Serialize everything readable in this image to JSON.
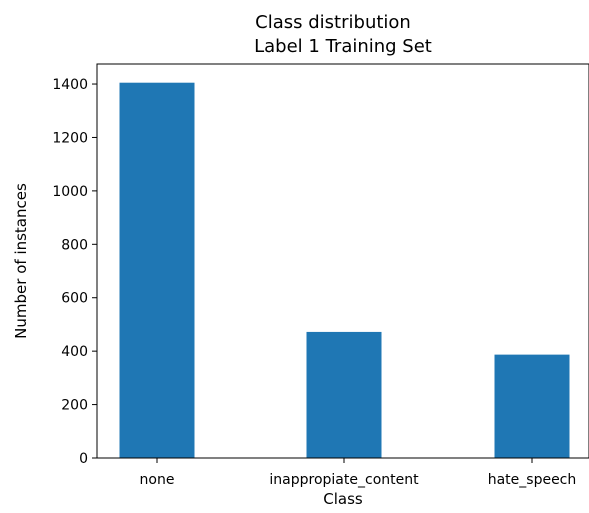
{
  "chart_data": {
    "type": "bar",
    "title_line1": "Class distribution",
    "title_line2": "Label 1 Training Set",
    "xlabel": "Class",
    "ylabel": "Number of instances",
    "categories": [
      "none",
      "inappropiate_content",
      "hate_speech"
    ],
    "values": [
      1405,
      472,
      387
    ],
    "ylim": [
      0,
      1475
    ],
    "yticks": [
      0,
      200,
      400,
      600,
      800,
      1000,
      1200,
      1400
    ],
    "ytick_labels": [
      "0",
      "200",
      "400",
      "600",
      "800",
      "1000",
      "1200",
      "1400"
    ],
    "bar_color": "#1f77b4",
    "grid": false,
    "legend": "none"
  }
}
